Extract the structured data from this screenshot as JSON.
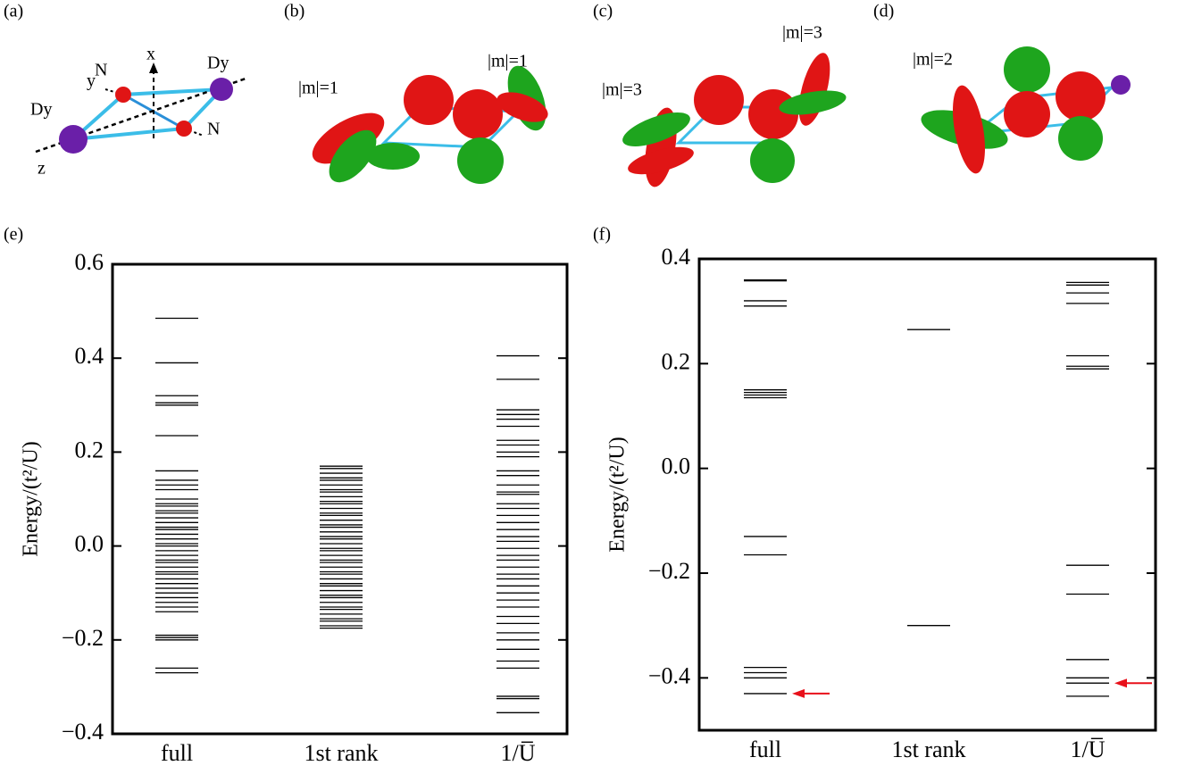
{
  "figure": {
    "panel_labels": [
      "(a)",
      "(b)",
      "(c)",
      "(d)",
      "(e)",
      "(f)"
    ],
    "a_labels": [
      "N",
      "x",
      "Dy",
      "y",
      "Dy",
      "N",
      "z"
    ],
    "m_labels": [
      "|m|=1",
      "|m|=1",
      "|m|=3",
      "|m|=3",
      "|m|=2"
    ]
  },
  "chart_data": [
    {
      "type": "levels",
      "ylabel": "Energy/(t²/U)",
      "categories": [
        "full",
        "1st rank",
        "1/U̅"
      ],
      "ylim": [
        -0.4,
        0.6
      ],
      "yticks": [
        {
          "value": -0.4,
          "label": "−0.4"
        },
        {
          "value": -0.2,
          "label": "−0.2"
        },
        {
          "value": 0,
          "label": "0.0"
        },
        0.2,
        0.4,
        0.6
      ],
      "levels": [
        [
          0.485,
          0.39,
          0.32,
          0.305,
          0.3,
          0.235,
          0.16,
          0.14,
          0.13,
          0.12,
          0.1,
          0.09,
          0.085,
          0.075,
          0.07,
          0.06,
          0.05,
          0.04,
          0.035,
          0.025,
          0.015,
          0.005,
          0.0,
          -0.01,
          -0.02,
          -0.03,
          -0.035,
          -0.045,
          -0.055,
          -0.06,
          -0.07,
          -0.08,
          -0.09,
          -0.1,
          -0.11,
          -0.12,
          -0.13,
          -0.14,
          -0.19,
          -0.195,
          -0.2,
          -0.26,
          -0.27
        ],
        [
          0.17,
          0.165,
          0.155,
          0.145,
          0.14,
          0.13,
          0.12,
          0.115,
          0.105,
          0.095,
          0.09,
          0.08,
          0.07,
          0.065,
          0.055,
          0.045,
          0.04,
          0.03,
          0.02,
          0.015,
          0.005,
          -0.005,
          -0.01,
          -0.02,
          -0.03,
          -0.035,
          -0.045,
          -0.055,
          -0.06,
          -0.07,
          -0.08,
          -0.085,
          -0.095,
          -0.105,
          -0.11,
          -0.12,
          -0.13,
          -0.135,
          -0.145,
          -0.155,
          -0.16,
          -0.17,
          -0.175
        ],
        [
          0.405,
          0.355,
          0.29,
          0.28,
          0.27,
          0.255,
          0.225,
          0.215,
          0.2,
          0.19,
          0.16,
          0.15,
          0.13,
          0.115,
          0.11,
          0.09,
          0.08,
          0.065,
          0.05,
          0.035,
          0.02,
          0.01,
          -0.005,
          -0.02,
          -0.03,
          -0.045,
          -0.06,
          -0.07,
          -0.085,
          -0.1,
          -0.115,
          -0.13,
          -0.15,
          -0.165,
          -0.185,
          -0.2,
          -0.22,
          -0.245,
          -0.26,
          -0.32,
          -0.325,
          -0.355
        ]
      ],
      "arrows": [
        null,
        null,
        null
      ],
      "arrow_color": "#e8101a"
    },
    {
      "type": "levels",
      "ylabel": "Energy/(t²/U)",
      "categories": [
        "full",
        "1st rank",
        "1/U̅"
      ],
      "ylim": [
        -0.5,
        0.4
      ],
      "yticks": [
        {
          "value": -0.4,
          "label": "−0.4"
        },
        {
          "value": -0.2,
          "label": "−0.2"
        },
        {
          "value": 0,
          "label": "0.0"
        },
        0.2,
        0.4
      ],
      "levels": [
        [
          0.36,
          0.358,
          0.32,
          0.31,
          0.15,
          0.145,
          0.14,
          0.135,
          -0.13,
          -0.165,
          -0.38,
          -0.39,
          -0.4,
          -0.43
        ],
        [
          0.265,
          -0.3
        ],
        [
          0.355,
          0.35,
          0.335,
          0.315,
          0.215,
          0.195,
          0.19,
          -0.185,
          -0.24,
          -0.365,
          -0.4,
          -0.41,
          -0.435
        ]
      ],
      "arrows": [
        -0.43,
        null,
        -0.41
      ],
      "arrow_color": "#e8101a"
    }
  ]
}
